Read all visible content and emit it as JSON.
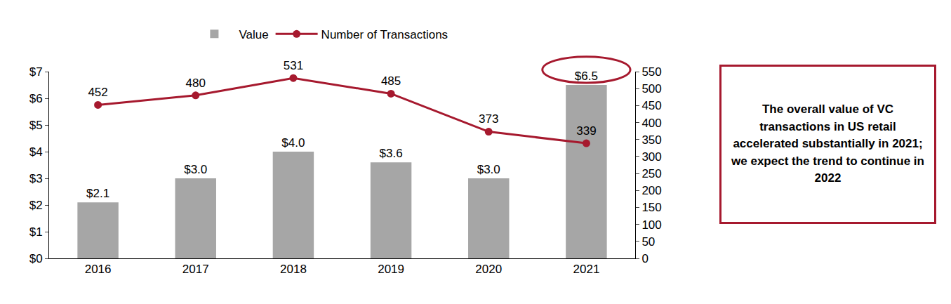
{
  "chart_data": {
    "type": "bar",
    "categories": [
      "2016",
      "2017",
      "2018",
      "2019",
      "2020",
      "2021"
    ],
    "series": [
      {
        "name": "Value",
        "type": "bar",
        "color": "#A6A6A6",
        "values": [
          2.1,
          3.0,
          4.0,
          3.6,
          3.0,
          6.5
        ],
        "value_labels": [
          "$2.1",
          "$3.0",
          "$4.0",
          "$3.6",
          "$3.0",
          "$6.5"
        ]
      },
      {
        "name": "Number of Transactions",
        "type": "line",
        "axis": "y2",
        "color": "#A6192E",
        "marker": "circle",
        "values": [
          452,
          480,
          531,
          485,
          373,
          339
        ]
      }
    ],
    "ylim": [
      0,
      7
    ],
    "yticks": [
      {
        "value": 0,
        "label": "$0"
      },
      {
        "value": 1,
        "label": "$1"
      },
      {
        "value": 2,
        "label": "$2"
      },
      {
        "value": 3,
        "label": "$3"
      },
      {
        "value": 4,
        "label": "$4"
      },
      {
        "value": 5,
        "label": "$5"
      },
      {
        "value": 6,
        "label": "$6"
      },
      {
        "value": 7,
        "label": "$7"
      }
    ],
    "y2lim": [
      0,
      550
    ],
    "y2ticks": [
      0,
      50,
      100,
      150,
      200,
      250,
      300,
      350,
      400,
      450,
      500,
      550
    ],
    "data_labels": true,
    "grid": false,
    "legend": "top",
    "annotation": "The overall value of VC transactions in US retail accelerated substantially in 2021; we expect the trend to continue in 2022"
  }
}
